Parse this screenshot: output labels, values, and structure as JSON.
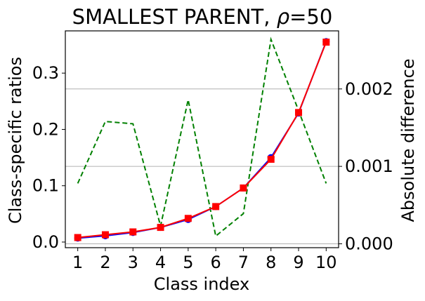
{
  "chart_data": {
    "type": "line",
    "title": "SMALLEST PARENT, ",
    "title_rho": "ρ",
    "title_value": "=50",
    "xlabel": "Class index",
    "ylabel_left": "Class-specific ratios",
    "ylabel_right": "Absolute difference",
    "x": [
      1,
      2,
      3,
      4,
      5,
      6,
      7,
      8,
      9,
      10
    ],
    "x_tick_labels": [
      "1",
      "2",
      "3",
      "4",
      "5",
      "6",
      "7",
      "8",
      "9",
      "10"
    ],
    "y_left_ticks": [
      0.0,
      0.1,
      0.2,
      0.3
    ],
    "y_left_tick_labels": [
      "0.0",
      "0.1",
      "0.2",
      "0.3"
    ],
    "y_right_ticks": [
      0.0,
      0.001,
      0.002
    ],
    "y_right_tick_labels": [
      "0.000",
      "0.001",
      "0.002"
    ],
    "ylim_left": [
      -0.01,
      0.375
    ],
    "ylim_right": [
      -5e-05,
      0.00275
    ],
    "xlim": [
      0.55,
      10.45
    ],
    "grid": "horizontal lines at right-axis ticks",
    "series": [
      {
        "axis": "left",
        "color": "#0000ff",
        "marker": "circle",
        "values": [
          0.007,
          0.011,
          0.017,
          0.026,
          0.04,
          0.063,
          0.096,
          0.15,
          0.229,
          0.356
        ]
      },
      {
        "axis": "left",
        "color": "#ff0000",
        "marker": "square",
        "values": [
          0.008,
          0.013,
          0.018,
          0.026,
          0.042,
          0.063,
          0.096,
          0.147,
          0.23,
          0.355
        ]
      },
      {
        "axis": "right",
        "color": "#008000",
        "style": "dashed",
        "values": [
          0.00078,
          0.00158,
          0.00155,
          0.00023,
          0.00186,
          0.0001,
          0.00039,
          0.00264,
          0.00172,
          0.00078
        ]
      }
    ]
  }
}
